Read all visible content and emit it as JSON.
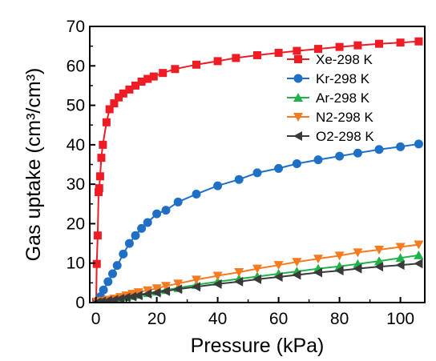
{
  "chart_data": {
    "type": "scatter",
    "title": "",
    "xlabel": "Pressure (kPa)",
    "ylabel": "Gas uptake (cm³/cm³)",
    "xlim": [
      -2,
      108
    ],
    "ylim": [
      0,
      70
    ],
    "xticks": [
      0,
      20,
      40,
      60,
      80,
      100
    ],
    "yticks": [
      0,
      10,
      20,
      30,
      40,
      50,
      60,
      70
    ],
    "grid": false,
    "legend_position": "right, upper-middle",
    "series": [
      {
        "name": "Xe-298 K",
        "color": "#ee1c25",
        "marker": "square",
        "points": [
          [
            0.1,
            0.2
          ],
          [
            0.3,
            9.8
          ],
          [
            0.6,
            17
          ],
          [
            0.9,
            28
          ],
          [
            1.1,
            29
          ],
          [
            1.4,
            32
          ],
          [
            1.8,
            36.7
          ],
          [
            2.3,
            40
          ],
          [
            3.5,
            45.7
          ],
          [
            4.5,
            49
          ],
          [
            6,
            50.5
          ],
          [
            7.5,
            52
          ],
          [
            9,
            53
          ],
          [
            11,
            54
          ],
          [
            13,
            55
          ],
          [
            15,
            56
          ],
          [
            17,
            56.7
          ],
          [
            19,
            57.3
          ],
          [
            22,
            58.2
          ],
          [
            26,
            59.2
          ],
          [
            33,
            60.3
          ],
          [
            40,
            61.2
          ],
          [
            46,
            62
          ],
          [
            53,
            62.7
          ],
          [
            60,
            63.3
          ],
          [
            66,
            63.8
          ],
          [
            73,
            64.3
          ],
          [
            80,
            64.8
          ],
          [
            86,
            65.2
          ],
          [
            93,
            65.6
          ],
          [
            100,
            65.9
          ],
          [
            106,
            66.2
          ]
        ]
      },
      {
        "name": "Kr-298 K",
        "color": "#1f6fc5",
        "marker": "circle",
        "points": [
          [
            0.5,
            0.2
          ],
          [
            1.5,
            1.5
          ],
          [
            2.5,
            3.2
          ],
          [
            4,
            5.3
          ],
          [
            5.5,
            7.3
          ],
          [
            7,
            9.4
          ],
          [
            9,
            12.3
          ],
          [
            11,
            15
          ],
          [
            13,
            17
          ],
          [
            15,
            18.8
          ],
          [
            17,
            20.3
          ],
          [
            20,
            22.5
          ],
          [
            23,
            23.4
          ],
          [
            27,
            25.5
          ],
          [
            33,
            27.5
          ],
          [
            40,
            29.6
          ],
          [
            47,
            31.2
          ],
          [
            53,
            32.9
          ],
          [
            60,
            34
          ],
          [
            66,
            35.2
          ],
          [
            73,
            36.2
          ],
          [
            80,
            37.1
          ],
          [
            86,
            37.9
          ],
          [
            93,
            38.8
          ],
          [
            100,
            39.5
          ],
          [
            106,
            40.2
          ]
        ]
      },
      {
        "name": "Ar-298 K",
        "color": "#1fb24a",
        "marker": "triangle-up",
        "points": [
          [
            0.5,
            0.1
          ],
          [
            2,
            0.3
          ],
          [
            4,
            0.5
          ],
          [
            6,
            0.8
          ],
          [
            8,
            1.1
          ],
          [
            10,
            1.4
          ],
          [
            12,
            1.7
          ],
          [
            14,
            2
          ],
          [
            17,
            2.4
          ],
          [
            20,
            2.8
          ],
          [
            23,
            3.2
          ],
          [
            27,
            3.7
          ],
          [
            33,
            4.5
          ],
          [
            40,
            5.3
          ],
          [
            47,
            6
          ],
          [
            53,
            6.6
          ],
          [
            60,
            7.3
          ],
          [
            66,
            7.9
          ],
          [
            73,
            8.6
          ],
          [
            80,
            9.2
          ],
          [
            86,
            9.8
          ],
          [
            93,
            10.5
          ],
          [
            100,
            11.3
          ],
          [
            106,
            12
          ]
        ]
      },
      {
        "name": "N2-298 K",
        "color": "#f47b20",
        "marker": "triangle-down",
        "points": [
          [
            0.5,
            0.2
          ],
          [
            2,
            0.4
          ],
          [
            4,
            0.7
          ],
          [
            6,
            1
          ],
          [
            8,
            1.4
          ],
          [
            10,
            1.8
          ],
          [
            12,
            2.2
          ],
          [
            14,
            2.6
          ],
          [
            17,
            3.1
          ],
          [
            20,
            3.6
          ],
          [
            23,
            4.2
          ],
          [
            27,
            4.8
          ],
          [
            33,
            5.8
          ],
          [
            40,
            6.8
          ],
          [
            47,
            7.7
          ],
          [
            53,
            8.6
          ],
          [
            60,
            9.5
          ],
          [
            66,
            10.3
          ],
          [
            73,
            11.1
          ],
          [
            80,
            11.9
          ],
          [
            86,
            12.7
          ],
          [
            93,
            13.4
          ],
          [
            100,
            14.1
          ],
          [
            106,
            14.7
          ]
        ]
      },
      {
        "name": "O2-298 K",
        "color": "#3a3a3a",
        "marker": "triangle-left",
        "points": [
          [
            0.5,
            0.1
          ],
          [
            2,
            0.3
          ],
          [
            4,
            0.5
          ],
          [
            6,
            0.7
          ],
          [
            8,
            1
          ],
          [
            10,
            1.3
          ],
          [
            12,
            1.5
          ],
          [
            14,
            1.8
          ],
          [
            17,
            2.2
          ],
          [
            20,
            2.5
          ],
          [
            23,
            2.9
          ],
          [
            27,
            3.4
          ],
          [
            33,
            4
          ],
          [
            40,
            4.7
          ],
          [
            47,
            5.3
          ],
          [
            53,
            5.9
          ],
          [
            60,
            6.5
          ],
          [
            66,
            7
          ],
          [
            73,
            7.6
          ],
          [
            80,
            8.1
          ],
          [
            86,
            8.6
          ],
          [
            93,
            9.1
          ],
          [
            100,
            9.5
          ],
          [
            106,
            9.9
          ]
        ]
      }
    ]
  }
}
